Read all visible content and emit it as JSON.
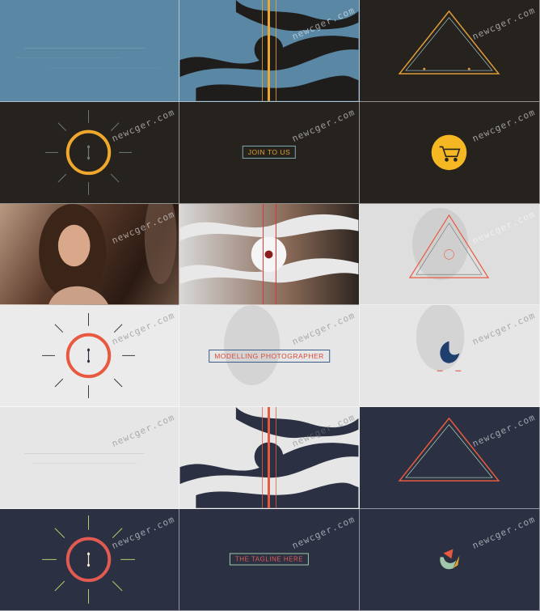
{
  "watermark": "newcger.com",
  "colors": {
    "steel_blue": "#5a87a3",
    "charcoal": "#26221e",
    "amber": "#f0a82c",
    "coral": "#e8593f",
    "navy": "#2b3142",
    "light_gray": "#e6e6e6"
  },
  "captions": {
    "join": "JOIN TO US",
    "modelling": "MODELLING PHOTOGRAPHER",
    "tagline": "THE TAGLINE HERE"
  },
  "cells": [
    {
      "theme": "steel-blue",
      "motif": "blank"
    },
    {
      "theme": "steel-blue",
      "motif": "wave-stripes"
    },
    {
      "theme": "charcoal",
      "motif": "triangle"
    },
    {
      "theme": "charcoal",
      "motif": "sun-ring"
    },
    {
      "theme": "charcoal",
      "motif": "caption"
    },
    {
      "theme": "charcoal",
      "motif": "cart-icon"
    },
    {
      "theme": "photo",
      "motif": "portrait"
    },
    {
      "theme": "photo",
      "motif": "wave-stripes"
    },
    {
      "theme": "photo",
      "motif": "triangle"
    },
    {
      "theme": "photo-light",
      "motif": "sun-ring"
    },
    {
      "theme": "photo-light",
      "motif": "caption"
    },
    {
      "theme": "photo-light",
      "motif": "logo"
    },
    {
      "theme": "light",
      "motif": "blank"
    },
    {
      "theme": "light",
      "motif": "wave-stripes"
    },
    {
      "theme": "navy",
      "motif": "triangle"
    },
    {
      "theme": "navy",
      "motif": "sun-ring"
    },
    {
      "theme": "navy",
      "motif": "caption"
    },
    {
      "theme": "navy",
      "motif": "logo"
    }
  ]
}
